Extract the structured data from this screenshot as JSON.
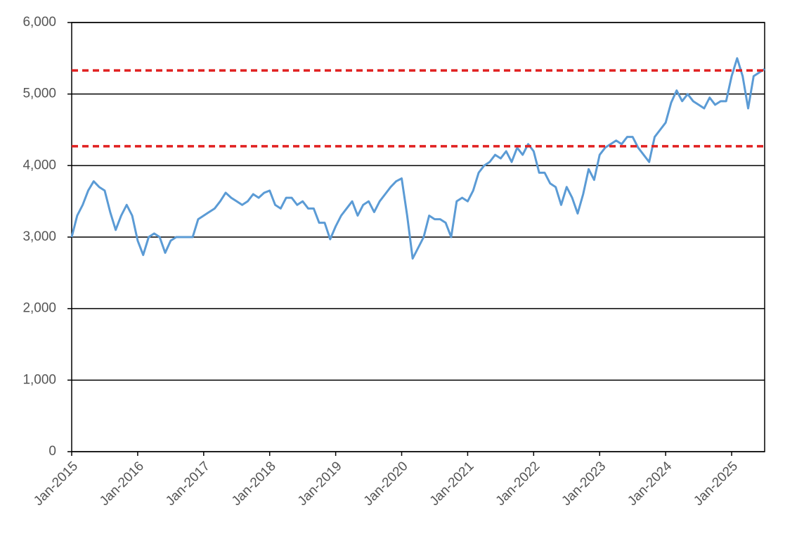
{
  "chart_data": {
    "type": "line",
    "x": [
      "2015-01",
      "2015-02",
      "2015-03",
      "2015-04",
      "2015-05",
      "2015-06",
      "2015-07",
      "2015-08",
      "2015-09",
      "2015-10",
      "2015-11",
      "2015-12",
      "2016-01",
      "2016-02",
      "2016-03",
      "2016-04",
      "2016-05",
      "2016-06",
      "2016-07",
      "2016-08",
      "2016-09",
      "2016-10",
      "2016-11",
      "2016-12",
      "2017-01",
      "2017-02",
      "2017-03",
      "2017-04",
      "2017-05",
      "2017-06",
      "2017-07",
      "2017-08",
      "2017-09",
      "2017-10",
      "2017-11",
      "2017-12",
      "2018-01",
      "2018-02",
      "2018-03",
      "2018-04",
      "2018-05",
      "2018-06",
      "2018-07",
      "2018-08",
      "2018-09",
      "2018-10",
      "2018-11",
      "2018-12",
      "2019-01",
      "2019-02",
      "2019-03",
      "2019-04",
      "2019-05",
      "2019-06",
      "2019-07",
      "2019-08",
      "2019-09",
      "2019-10",
      "2019-11",
      "2019-12",
      "2020-01",
      "2020-02",
      "2020-03",
      "2020-04",
      "2020-05",
      "2020-06",
      "2020-07",
      "2020-08",
      "2020-09",
      "2020-10",
      "2020-11",
      "2020-12",
      "2021-01",
      "2021-02",
      "2021-03",
      "2021-04",
      "2021-05",
      "2021-06",
      "2021-07",
      "2021-08",
      "2021-09",
      "2021-10",
      "2021-11",
      "2021-12",
      "2022-01",
      "2022-02",
      "2022-03",
      "2022-04",
      "2022-05",
      "2022-06",
      "2022-07",
      "2022-08",
      "2022-09",
      "2022-10",
      "2022-11",
      "2022-12",
      "2023-01",
      "2023-02",
      "2023-03",
      "2023-04",
      "2023-05",
      "2023-06",
      "2023-07",
      "2023-08",
      "2023-09",
      "2023-10",
      "2023-11",
      "2023-12",
      "2024-01",
      "2024-02",
      "2024-03",
      "2024-04",
      "2024-05",
      "2024-06",
      "2024-07",
      "2024-08",
      "2024-09",
      "2024-10",
      "2024-11",
      "2024-12",
      "2025-01",
      "2025-02",
      "2025-03",
      "2025-04",
      "2025-05",
      "2025-06",
      "2025-07"
    ],
    "values": [
      3000,
      3300,
      3450,
      3650,
      3780,
      3700,
      3650,
      3350,
      3100,
      3300,
      3450,
      3300,
      2950,
      2750,
      3000,
      3050,
      3000,
      2780,
      2950,
      3000,
      3000,
      3000,
      3000,
      3250,
      3300,
      3350,
      3400,
      3500,
      3620,
      3550,
      3500,
      3450,
      3500,
      3600,
      3550,
      3620,
      3650,
      3450,
      3400,
      3550,
      3550,
      3450,
      3500,
      3400,
      3400,
      3200,
      3200,
      2970,
      3150,
      3300,
      3400,
      3500,
      3300,
      3450,
      3500,
      3350,
      3500,
      3600,
      3700,
      3780,
      3820,
      3300,
      2700,
      2850,
      3000,
      3300,
      3250,
      3250,
      3200,
      3000,
      3500,
      3550,
      3500,
      3650,
      3900,
      4000,
      4050,
      4150,
      4100,
      4200,
      4050,
      4250,
      4150,
      4300,
      4200,
      3900,
      3900,
      3750,
      3700,
      3450,
      3700,
      3550,
      3330,
      3600,
      3950,
      3800,
      4150,
      4250,
      4300,
      4350,
      4300,
      4400,
      4400,
      4250,
      4150,
      4050,
      4400,
      4500,
      4600,
      4880,
      5050,
      4900,
      5000,
      4900,
      4850,
      4800,
      4950,
      4850,
      4900,
      4900,
      5250,
      5500,
      5250,
      4800,
      5250,
      5300,
      5350
    ],
    "color": "#5b9bd5",
    "xlim": [
      "2015-01",
      "2025-07"
    ],
    "xticks": [
      {
        "value": "2015-01",
        "label": "Jan-2015"
      },
      {
        "value": "2016-01",
        "label": "Jan-2016"
      },
      {
        "value": "2017-01",
        "label": "Jan-2017"
      },
      {
        "value": "2018-01",
        "label": "Jan-2018"
      },
      {
        "value": "2019-01",
        "label": "Jan-2019"
      },
      {
        "value": "2020-01",
        "label": "Jan-2020"
      },
      {
        "value": "2021-01",
        "label": "Jan-2021"
      },
      {
        "value": "2022-01",
        "label": "Jan-2022"
      },
      {
        "value": "2023-01",
        "label": "Jan-2023"
      },
      {
        "value": "2024-01",
        "label": "Jan-2024"
      },
      {
        "value": "2025-01",
        "label": "Jan-2025"
      }
    ],
    "ylim": [
      0,
      6000
    ],
    "yticks": [
      0,
      {
        "value": 1000,
        "label": "1,000"
      },
      {
        "value": 2000,
        "label": "2,000"
      },
      {
        "value": 3000,
        "label": "3,000"
      },
      {
        "value": 4000,
        "label": "4,000"
      },
      {
        "value": 5000,
        "label": "5,000"
      },
      {
        "value": 6000,
        "label": "6,000"
      }
    ],
    "grid": true,
    "reference_lines": [
      {
        "value": 5330,
        "color": "#e02020"
      },
      {
        "value": 4270,
        "color": "#e02020"
      }
    ]
  }
}
